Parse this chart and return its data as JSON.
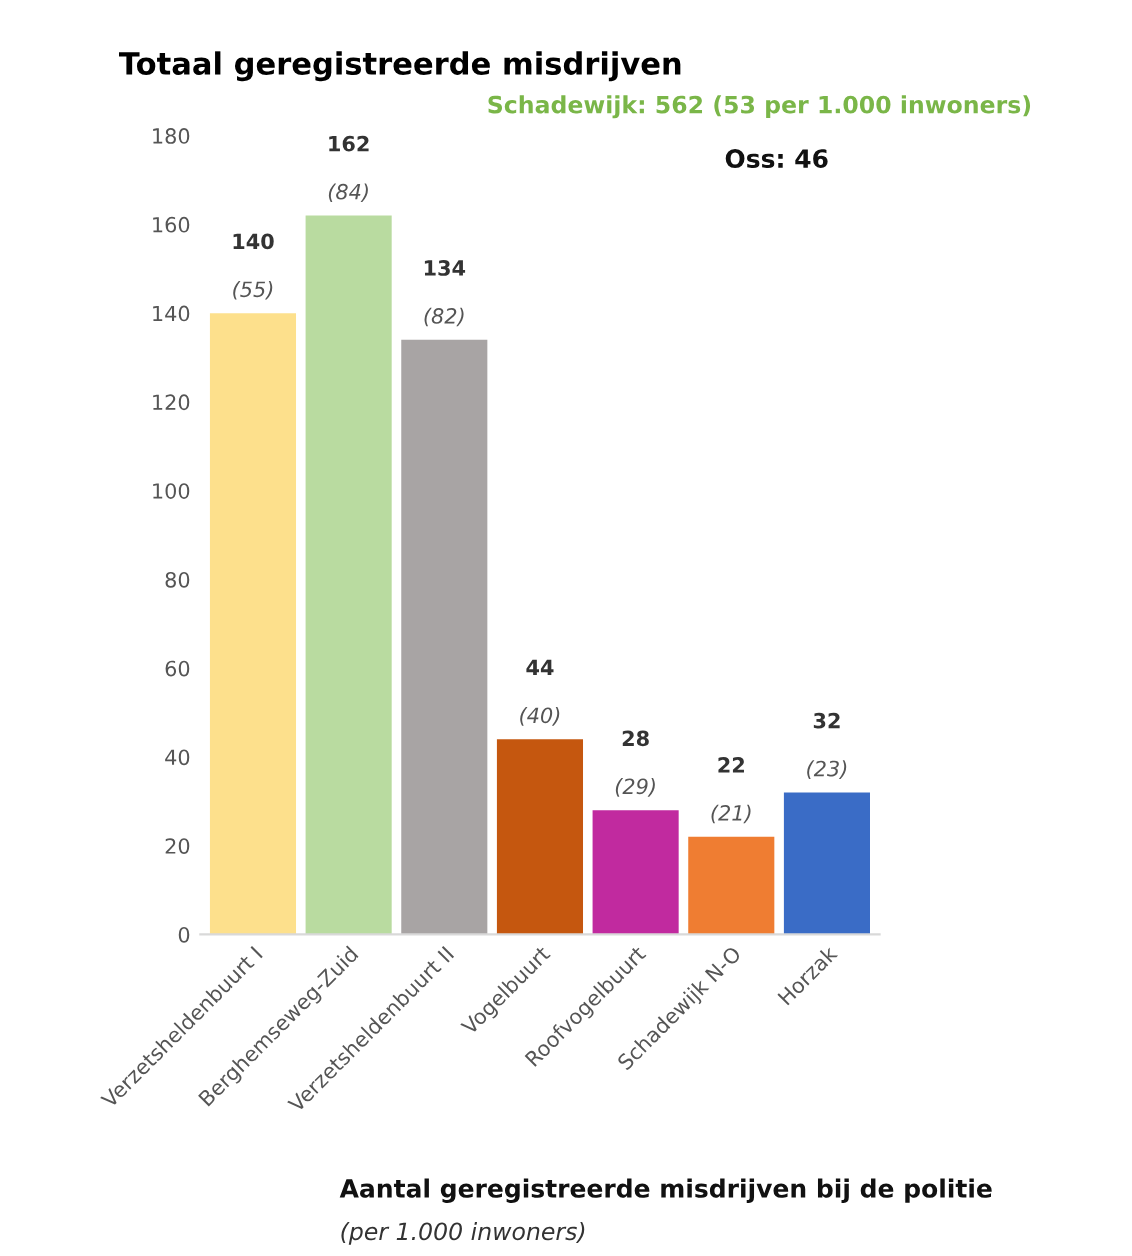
{
  "chart_data": {
    "type": "bar",
    "title": "Totaal geregistreerde misdrijven",
    "categories": [
      "Verzetsheldenbuurt I",
      "Berghemseweg-Zuid",
      "Verzetsheldenbuurt II",
      "Vogelbuurt",
      "Roofvogelbuurt",
      "Schadewijk N-O",
      "Horzak"
    ],
    "values": [
      140,
      162,
      134,
      44,
      28,
      22,
      32
    ],
    "colors": [
      "#fde08c",
      "#b9dba0",
      "#a8a4a4",
      "#c5570f",
      "#c12a9f",
      "#ef7d32",
      "#3a6cc6"
    ],
    "data_labels": true,
    "ylim": [
      0,
      180
    ],
    "yticks": [
      0,
      20,
      40,
      60,
      80,
      100,
      120,
      140,
      160,
      180
    ],
    "grid": false,
    "annotations": [
      {
        "text": "(55)",
        "x": "Verzetsheldenbuurt I",
        "y": 140
      },
      {
        "text": "(84)",
        "x": "Berghemseweg-Zuid",
        "y": 162
      },
      {
        "text": "(82)",
        "x": "Verzetsheldenbuurt II",
        "y": 134
      },
      {
        "text": "(40)",
        "x": "Vogelbuurt",
        "y": 44
      },
      {
        "text": "(29)",
        "x": "Roofvogelbuurt",
        "y": 28
      },
      {
        "text": "(21)",
        "x": "Schadewijk N-O",
        "y": 22
      },
      {
        "text": "(23)",
        "x": "Horzak",
        "y": 32
      },
      "Schadewijk: 562 (53 per 1.000 inwoners)",
      "Oss: 46",
      "Aantal geregistreerde misdrijven bij de politie",
      "(per 1.000 inwoners)"
    ]
  }
}
